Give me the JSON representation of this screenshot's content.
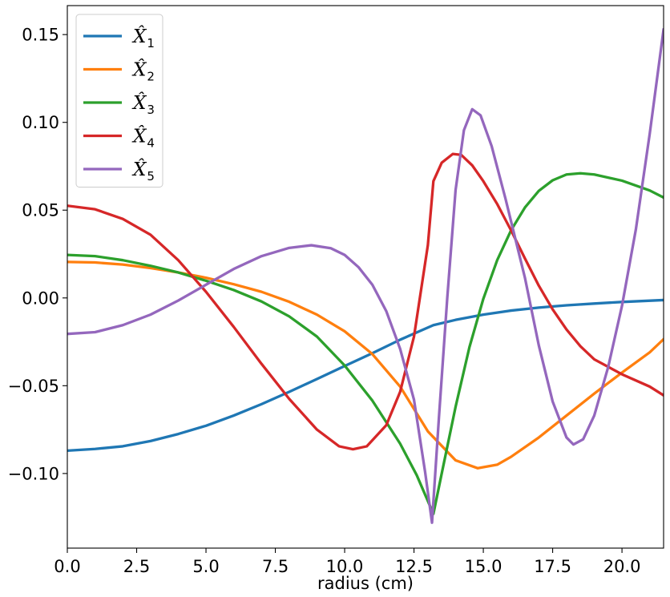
{
  "chart_data": {
    "type": "line",
    "title": "",
    "xlabel": "radius (cm)",
    "ylabel": "",
    "xlim": [
      0,
      21.5
    ],
    "ylim": [
      -0.1425,
      0.1665
    ],
    "x_ticks": [
      0.0,
      2.5,
      5.0,
      7.5,
      10.0,
      12.5,
      15.0,
      17.5,
      20.0
    ],
    "x_tick_labels": [
      "0.0",
      "2.5",
      "5.0",
      "7.5",
      "10.0",
      "12.5",
      "15.0",
      "17.5",
      "20.0"
    ],
    "y_ticks": [
      -0.1,
      -0.05,
      0.0,
      0.05,
      0.1,
      0.15
    ],
    "y_tick_labels": [
      "−0.10",
      "−0.05",
      "0.00",
      "0.05",
      "0.10",
      "0.15"
    ],
    "grid": false,
    "legend_position": "top-left",
    "series": [
      {
        "name": "X1",
        "legend_label": "X̂",
        "legend_sub": "1",
        "color": "#1f77b4",
        "points": [
          [
            0.0,
            -0.087
          ],
          [
            1.0,
            -0.086
          ],
          [
            2.0,
            -0.0845
          ],
          [
            3.0,
            -0.0815
          ],
          [
            4.0,
            -0.0775
          ],
          [
            5.0,
            -0.0728
          ],
          [
            6.0,
            -0.067
          ],
          [
            7.0,
            -0.0605
          ],
          [
            8.0,
            -0.0535
          ],
          [
            9.0,
            -0.0462
          ],
          [
            10.0,
            -0.0388
          ],
          [
            11.0,
            -0.0315
          ],
          [
            12.0,
            -0.0238
          ],
          [
            13.2,
            -0.0155
          ],
          [
            14.0,
            -0.0125
          ],
          [
            15.0,
            -0.0095
          ],
          [
            16.0,
            -0.0072
          ],
          [
            17.0,
            -0.0055
          ],
          [
            18.0,
            -0.0042
          ],
          [
            19.0,
            -0.0032
          ],
          [
            20.0,
            -0.0023
          ],
          [
            21.5,
            -0.0012
          ]
        ]
      },
      {
        "name": "X2",
        "legend_label": "X̂",
        "legend_sub": "2",
        "color": "#ff7f0e",
        "points": [
          [
            0.0,
            0.0205
          ],
          [
            1.0,
            0.0202
          ],
          [
            2.0,
            0.019
          ],
          [
            3.0,
            0.017
          ],
          [
            4.0,
            0.0145
          ],
          [
            5.0,
            0.0115
          ],
          [
            6.0,
            0.0078
          ],
          [
            7.0,
            0.0035
          ],
          [
            8.0,
            -0.0022
          ],
          [
            9.0,
            -0.0095
          ],
          [
            10.0,
            -0.019
          ],
          [
            11.0,
            -0.032
          ],
          [
            12.0,
            -0.0505
          ],
          [
            13.0,
            -0.076
          ],
          [
            14.0,
            -0.0925
          ],
          [
            14.8,
            -0.097
          ],
          [
            15.5,
            -0.095
          ],
          [
            16.0,
            -0.0905
          ],
          [
            17.0,
            -0.0795
          ],
          [
            18.0,
            -0.067
          ],
          [
            19.0,
            -0.0545
          ],
          [
            20.0,
            -0.0425
          ],
          [
            21.0,
            -0.031
          ],
          [
            21.5,
            -0.0235
          ]
        ]
      },
      {
        "name": "X3",
        "legend_label": "X̂",
        "legend_sub": "3",
        "color": "#2ca02c",
        "points": [
          [
            0.0,
            0.0245
          ],
          [
            1.0,
            0.0238
          ],
          [
            2.0,
            0.0215
          ],
          [
            3.0,
            0.0183
          ],
          [
            4.0,
            0.0145
          ],
          [
            5.0,
            0.0098
          ],
          [
            6.0,
            0.0045
          ],
          [
            7.0,
            -0.002
          ],
          [
            8.0,
            -0.0105
          ],
          [
            9.0,
            -0.022
          ],
          [
            10.0,
            -0.0385
          ],
          [
            11.0,
            -0.0585
          ],
          [
            12.0,
            -0.083
          ],
          [
            12.6,
            -0.101
          ],
          [
            13.2,
            -0.123
          ],
          [
            13.5,
            -0.1
          ],
          [
            14.0,
            -0.062
          ],
          [
            14.5,
            -0.028
          ],
          [
            15.0,
            -0.0005
          ],
          [
            15.5,
            0.0215
          ],
          [
            16.0,
            0.0385
          ],
          [
            16.5,
            0.0515
          ],
          [
            17.0,
            0.061
          ],
          [
            17.5,
            0.067
          ],
          [
            18.0,
            0.0703
          ],
          [
            18.5,
            0.071
          ],
          [
            19.0,
            0.0703
          ],
          [
            20.0,
            0.0668
          ],
          [
            21.0,
            0.0612
          ],
          [
            21.5,
            0.0572
          ]
        ]
      },
      {
        "name": "X4",
        "legend_label": "X̂",
        "legend_sub": "4",
        "color": "#d62728",
        "points": [
          [
            0.0,
            0.0525
          ],
          [
            1.0,
            0.0505
          ],
          [
            2.0,
            0.045
          ],
          [
            3.0,
            0.036
          ],
          [
            4.0,
            0.0215
          ],
          [
            5.0,
            0.0035
          ],
          [
            6.0,
            -0.0165
          ],
          [
            7.0,
            -0.0375
          ],
          [
            8.0,
            -0.0575
          ],
          [
            9.0,
            -0.075
          ],
          [
            9.8,
            -0.0845
          ],
          [
            10.3,
            -0.0862
          ],
          [
            10.8,
            -0.0845
          ],
          [
            11.5,
            -0.0725
          ],
          [
            12.0,
            -0.0535
          ],
          [
            12.5,
            -0.022
          ],
          [
            13.0,
            0.03
          ],
          [
            13.2,
            0.0665
          ],
          [
            13.5,
            0.077
          ],
          [
            13.9,
            0.082
          ],
          [
            14.2,
            0.0815
          ],
          [
            14.6,
            0.0755
          ],
          [
            15.0,
            0.0665
          ],
          [
            15.5,
            0.0535
          ],
          [
            16.0,
            0.0385
          ],
          [
            16.5,
            0.0225
          ],
          [
            17.0,
            0.007
          ],
          [
            17.5,
            -0.0065
          ],
          [
            18.0,
            -0.018
          ],
          [
            18.5,
            -0.0275
          ],
          [
            19.0,
            -0.035
          ],
          [
            20.0,
            -0.0435
          ],
          [
            21.0,
            -0.0505
          ],
          [
            21.5,
            -0.0555
          ]
        ]
      },
      {
        "name": "X5",
        "legend_label": "X̂",
        "legend_sub": "5",
        "color": "#9467bd",
        "points": [
          [
            0.0,
            -0.0205
          ],
          [
            1.0,
            -0.0195
          ],
          [
            2.0,
            -0.0155
          ],
          [
            3.0,
            -0.0095
          ],
          [
            4.0,
            -0.0015
          ],
          [
            5.0,
            0.0075
          ],
          [
            6.0,
            0.0165
          ],
          [
            7.0,
            0.0238
          ],
          [
            8.0,
            0.0285
          ],
          [
            8.8,
            0.03
          ],
          [
            9.5,
            0.0283
          ],
          [
            10.0,
            0.0245
          ],
          [
            10.5,
            0.0175
          ],
          [
            11.0,
            0.0075
          ],
          [
            11.5,
            -0.0075
          ],
          [
            12.0,
            -0.029
          ],
          [
            12.5,
            -0.058
          ],
          [
            12.9,
            -0.099
          ],
          [
            13.15,
            -0.128
          ],
          [
            13.4,
            -0.068
          ],
          [
            13.7,
            0.0
          ],
          [
            14.0,
            0.0615
          ],
          [
            14.3,
            0.0955
          ],
          [
            14.6,
            0.1075
          ],
          [
            14.9,
            0.104
          ],
          [
            15.3,
            0.0865
          ],
          [
            15.8,
            0.0565
          ],
          [
            16.5,
            0.0115
          ],
          [
            17.0,
            -0.027
          ],
          [
            17.5,
            -0.059
          ],
          [
            18.0,
            -0.0795
          ],
          [
            18.25,
            -0.0835
          ],
          [
            18.6,
            -0.0805
          ],
          [
            19.0,
            -0.067
          ],
          [
            19.5,
            -0.0395
          ],
          [
            20.0,
            -0.0045
          ],
          [
            20.5,
            0.039
          ],
          [
            21.0,
            0.0935
          ],
          [
            21.5,
            0.153
          ]
        ]
      }
    ]
  }
}
